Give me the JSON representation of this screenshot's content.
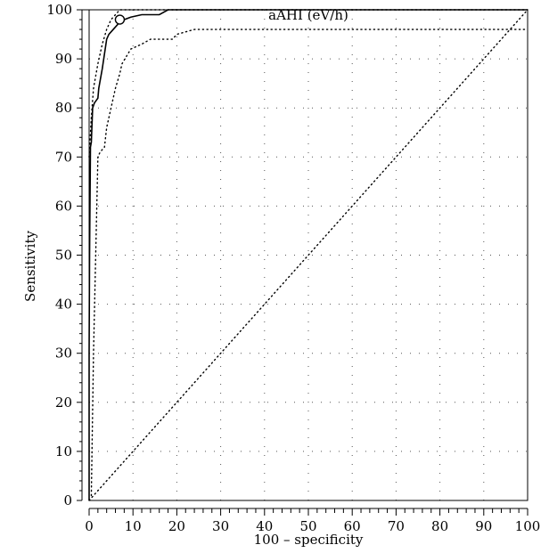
{
  "chart_data": {
    "type": "line",
    "title": "aAHI (eV/h)",
    "xlabel": "100 – specificity",
    "ylabel": "Sensitivity",
    "xlim": [
      0,
      100
    ],
    "ylim": [
      0,
      100
    ],
    "x_ticks": [
      0,
      10,
      20,
      30,
      40,
      50,
      60,
      70,
      80,
      90,
      100
    ],
    "y_ticks": [
      0,
      10,
      20,
      30,
      40,
      50,
      60,
      70,
      80,
      90,
      100
    ],
    "grid": true,
    "series": [
      {
        "style": "solid",
        "x": [
          0,
          0,
          0.1,
          0.3,
          0.5,
          0.8,
          1.2,
          2.0,
          2.2,
          3.0,
          3.5,
          4.0,
          4.5,
          5.5,
          6.5,
          7.0,
          8.0,
          9.5,
          12.0,
          13.5,
          16.0,
          18.0,
          20.0,
          30.0,
          50.0,
          70.0,
          90.0,
          100.0
        ],
        "y": [
          0,
          30,
          50,
          72,
          73,
          80,
          81,
          82,
          84,
          88,
          91,
          94,
          95,
          96,
          97,
          98,
          98,
          98.5,
          99,
          99,
          99,
          100,
          100,
          100,
          100,
          100,
          100,
          100
        ]
      },
      {
        "style": "dotted",
        "x": [
          0,
          0.5,
          1.0,
          2.0,
          3.0,
          4.0,
          5.0,
          6.0,
          7.0,
          8.0,
          10.0,
          12.0,
          20.0,
          50.0,
          100.0
        ],
        "y": [
          70,
          78,
          84,
          89,
          93,
          96,
          98,
          99,
          100,
          100,
          100,
          100,
          100,
          100,
          100
        ]
      },
      {
        "style": "dotted",
        "x": [
          0.5,
          1.0,
          2.0,
          2.5,
          3.5,
          4.0,
          5.0,
          6.0,
          7.0,
          7.5,
          9.5,
          12.0,
          14.0,
          19.0,
          20.0,
          24.0,
          30.0,
          50.0,
          70.0,
          90.0,
          100.0
        ],
        "y": [
          1,
          30,
          70,
          71,
          72,
          76,
          80,
          84,
          87,
          89,
          92,
          93,
          94,
          94,
          95,
          96,
          96,
          96,
          96,
          96,
          96
        ]
      },
      {
        "style": "dotted",
        "x": [
          0,
          100
        ],
        "y": [
          0,
          100
        ]
      }
    ],
    "marker": {
      "x": 7,
      "y": 98
    }
  }
}
